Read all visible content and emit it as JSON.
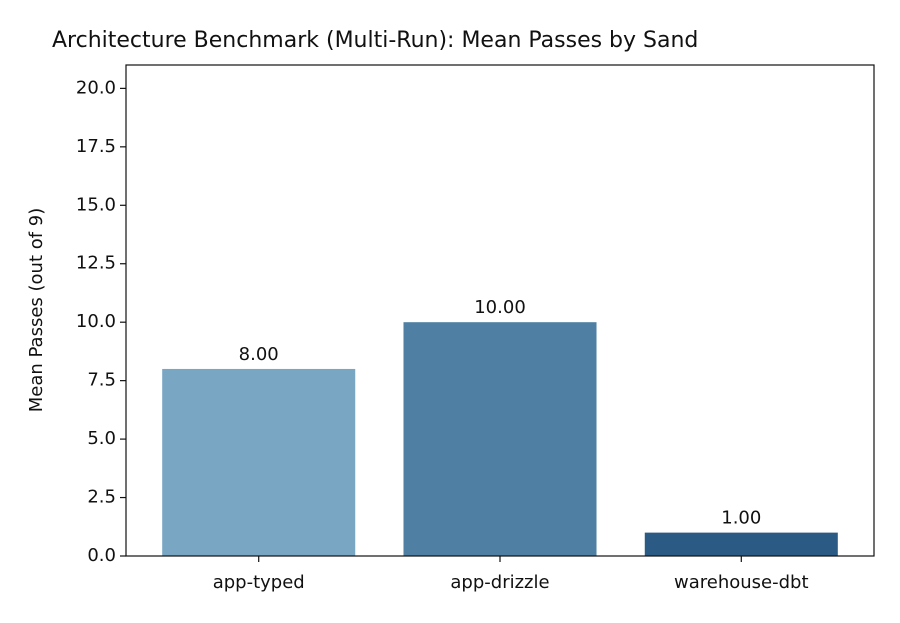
{
  "chart_data": {
    "type": "bar",
    "title": "Architecture Benchmark (Multi-Run): Mean Passes by Sand",
    "y_label": "Mean Passes (out of 9)",
    "categories": [
      "app-typed",
      "app-drizzle",
      "warehouse-dbt"
    ],
    "values": [
      8,
      10,
      1
    ],
    "value_labels": [
      "8.00",
      "10.00",
      "1.00"
    ],
    "colors": [
      "#79a6c2",
      "#4f7fa2",
      "#2b5a84"
    ],
    "ylim": [
      0,
      21
    ],
    "yticks": [
      {
        "value": 0,
        "label": "0.0"
      },
      {
        "value": 2.5,
        "label": "2.5"
      },
      {
        "value": 5,
        "label": "5.0"
      },
      {
        "value": 7.5,
        "label": "7.5"
      },
      {
        "value": 10,
        "label": "10.0"
      },
      {
        "value": 12.5,
        "label": "12.5"
      },
      {
        "value": 15,
        "label": "15.0"
      },
      {
        "value": 17.5,
        "label": "17.5"
      },
      {
        "value": 20,
        "label": "20.0"
      }
    ],
    "grid": false
  }
}
